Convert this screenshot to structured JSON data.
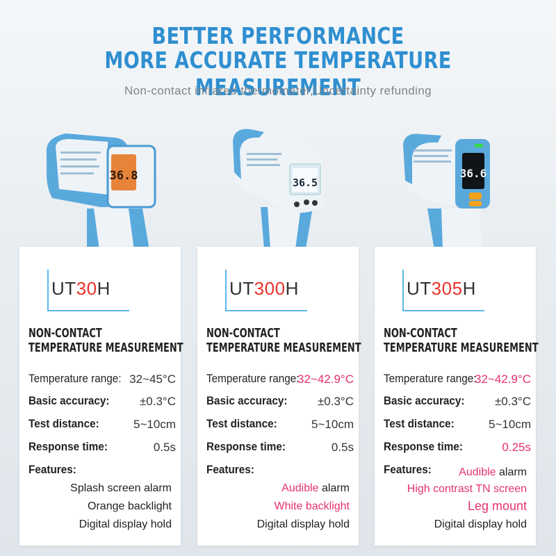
{
  "header": {
    "line1": "BETTER PERFORMANCE",
    "line2": "MORE ACCURATE TEMPERATURE MEASUREMENT",
    "subtitle": "Non-contact infrared thermometer,Uncertainty refunding"
  },
  "products": [
    {
      "model_prefix": "UT",
      "model_num": "30",
      "model_suffix": "H",
      "display_reading": "36.8",
      "section_line1": "NON-CONTACT",
      "section_line2": "TEMPERATURE MEASUREMENT",
      "specs": [
        {
          "label": "Temperature range:",
          "value": "32~45°C"
        },
        {
          "label": "Basic accuracy:",
          "value": "±0.3°C"
        },
        {
          "label": "Test distance:",
          "value": "5~10cm"
        },
        {
          "label": "Response time:",
          "value": "0.5s"
        }
      ],
      "features_label": "Features:",
      "features": [
        {
          "hl": "",
          "rest": "Splash screen alarm"
        },
        {
          "hl": "",
          "rest": "Orange backlight"
        },
        {
          "hl": "",
          "rest": "Digital display hold"
        }
      ]
    },
    {
      "model_prefix": "UT",
      "model_num": "300",
      "model_suffix": "H",
      "display_reading": "36.5",
      "section_line1": "NON-CONTACT",
      "section_line2": "TEMPERATURE MEASUREMENT",
      "specs": [
        {
          "label": "Temperature range:",
          "value": "32~42.9°C"
        },
        {
          "label": "Basic accuracy:",
          "value": "±0.3°C"
        },
        {
          "label": "Test distance:",
          "value": "5~10cm"
        },
        {
          "label": "Response time:",
          "value": "0.5s"
        }
      ],
      "features_label": "Features:",
      "features": [
        {
          "hl": "Audible",
          "rest": " alarm"
        },
        {
          "hl": "White backlight",
          "rest": ""
        },
        {
          "hl": "",
          "rest": "Digital display hold"
        }
      ]
    },
    {
      "model_prefix": "UT",
      "model_num": "305",
      "model_suffix": "H",
      "display_reading": "36.6",
      "section_line1": "NON-CONTACT",
      "section_line2": "TEMPERATURE MEASUREMENT",
      "specs": [
        {
          "label": "Temperature range:",
          "value": "32~42.9°C"
        },
        {
          "label": "Basic accuracy:",
          "value": "±0.3°C"
        },
        {
          "label": "Test distance:",
          "value": "5~10cm"
        },
        {
          "label": "Response time:",
          "value": "0.25s"
        }
      ],
      "features_label": "Features:",
      "features": [
        {
          "hl": "Audible",
          "rest": " alarm"
        },
        {
          "hl": "High contrast TN screen",
          "rest": ""
        },
        {
          "hl": "Leg mount",
          "rest": ""
        },
        {
          "hl": "",
          "rest": "Digital display hold"
        }
      ]
    }
  ],
  "colors": {
    "headline": "#2f8fd0",
    "accent_red": "#e8332c",
    "highlight_pink": "#e5326a",
    "device_blue": "#5aa9dc",
    "device_white": "#f3f7fa"
  }
}
